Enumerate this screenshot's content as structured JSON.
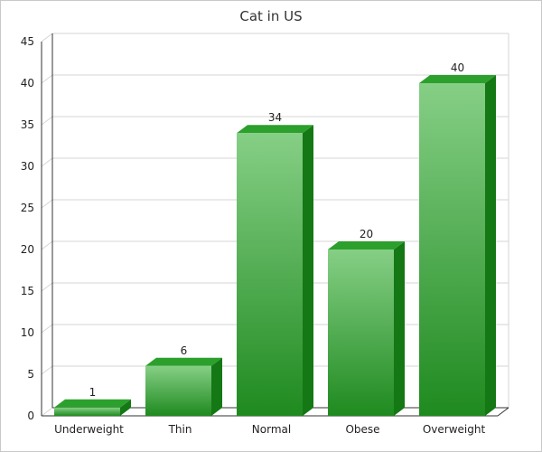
{
  "chart_data": {
    "type": "bar",
    "title": "Cat in US",
    "xlabel": "",
    "ylabel": "",
    "categories": [
      "Underweight",
      "Thin",
      "Normal",
      "Obese",
      "Overweight"
    ],
    "values": [
      1,
      6,
      34,
      20,
      40
    ],
    "ylim": [
      0,
      45
    ],
    "yticks": [
      0,
      5,
      10,
      15,
      20,
      25,
      30,
      35,
      40,
      45
    ],
    "grid": true,
    "style": "3d",
    "colors": {
      "bar_top": "#86cf86",
      "bar_bottom": "#1f8a1f",
      "bar_side": "#147814",
      "bar_cap": "#2ca02c",
      "grid": "#d4d4d4",
      "axis": "#333333"
    }
  }
}
